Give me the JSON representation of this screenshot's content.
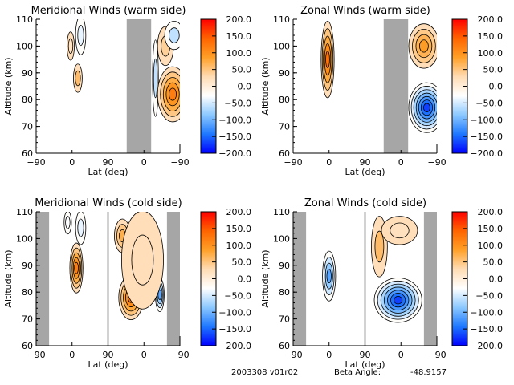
{
  "footer": {
    "date_version": "2003308 v01r02",
    "beta_label": "Beta Angle:",
    "beta_value": "-48.9157"
  },
  "colorbar": {
    "ticks": [
      "200.0",
      "150.0",
      "100.0",
      "50.0",
      "0.0",
      "-50.0",
      "-100.0",
      "-150.0",
      "-200.0"
    ],
    "range": [
      -200,
      200
    ],
    "colors": [
      "#0000ff",
      "#1e78ff",
      "#8cc8ff",
      "#ffffff",
      "#ffdcb4",
      "#ffa028",
      "#ff6400",
      "#ff0000"
    ]
  },
  "chart_data": [
    {
      "type": "heatmap",
      "title": "Meridional Winds (warm side)",
      "xlabel": "Lat (deg)",
      "ylabel": "Altitude (km)",
      "xticks": [
        "-90",
        "0",
        "90",
        "0",
        "-90"
      ],
      "yticks": [
        "60",
        "70",
        "80",
        "90",
        "100",
        "110"
      ],
      "ylim": [
        60,
        110
      ],
      "gap_band": [
        0.63,
        0.8
      ],
      "features": [
        {
          "x": 0.29,
          "y": 88,
          "rx": 0.025,
          "ry": 5,
          "v": 60
        },
        {
          "x": 0.24,
          "y": 100,
          "rx": 0.02,
          "ry": 5,
          "v": 15
        },
        {
          "x": 0.31,
          "y": 104,
          "rx": 0.03,
          "ry": 7,
          "v": -40
        },
        {
          "x": 0.83,
          "y": 88,
          "rx": 0.015,
          "ry": 14,
          "v": -60
        },
        {
          "x": 0.9,
          "y": 100,
          "rx": 0.05,
          "ry": 7,
          "v": 40
        },
        {
          "x": 0.95,
          "y": 82,
          "rx": 0.1,
          "ry": 10,
          "v": 120
        },
        {
          "x": 0.96,
          "y": 104,
          "rx": 0.06,
          "ry": 5,
          "v": -60
        }
      ]
    },
    {
      "type": "heatmap",
      "title": "Zonal Winds (warm side)",
      "xlabel": "Lat (deg)",
      "ylabel": "Altitude (km)",
      "xticks": [
        "-90",
        "0",
        "90",
        "0",
        "-90"
      ],
      "yticks": [
        "60",
        "70",
        "80",
        "90",
        "100",
        "110"
      ],
      "ylim": [
        60,
        110
      ],
      "gap_band": [
        0.63,
        0.8
      ],
      "features": [
        {
          "x": 0.24,
          "y": 95,
          "rx": 0.04,
          "ry": 14,
          "v": 130
        },
        {
          "x": 0.91,
          "y": 100,
          "rx": 0.1,
          "ry": 8,
          "v": 90
        },
        {
          "x": 0.93,
          "y": 77,
          "rx": 0.12,
          "ry": 9,
          "v": -170
        }
      ]
    },
    {
      "type": "heatmap",
      "title": "Meridional Winds (cold side)",
      "xlabel": "Lat (deg)",
      "ylabel": "Altitude (km)",
      "xticks": [
        "-90",
        "0",
        "90",
        "0",
        "-90"
      ],
      "yticks": [
        "60",
        "70",
        "80",
        "90",
        "100",
        "110"
      ],
      "ylim": [
        60,
        110
      ],
      "gap_band": [
        0.0,
        0.09
      ],
      "gap_band2": [
        0.91,
        1.0
      ],
      "separator": 0.5,
      "features": [
        {
          "x": 0.28,
          "y": 89,
          "rx": 0.04,
          "ry": 9,
          "v": 120
        },
        {
          "x": 0.22,
          "y": 106,
          "rx": 0.02,
          "ry": 4,
          "v": -30
        },
        {
          "x": 0.31,
          "y": 104,
          "rx": 0.03,
          "ry": 6,
          "v": -40
        },
        {
          "x": 0.6,
          "y": 101,
          "rx": 0.05,
          "ry": 6,
          "v": 70
        },
        {
          "x": 0.66,
          "y": 78,
          "rx": 0.08,
          "ry": 8,
          "v": 130
        },
        {
          "x": 0.86,
          "y": 79,
          "rx": 0.025,
          "ry": 6,
          "v": -110
        },
        {
          "x": 0.74,
          "y": 92,
          "rx": 0.14,
          "ry": 18,
          "v": 25
        }
      ]
    },
    {
      "type": "heatmap",
      "title": "Zonal Winds (cold side)",
      "xlabel": "Lat (deg)",
      "ylabel": "Altitude (km)",
      "xticks": [
        "-90",
        "0",
        "90",
        "0",
        "-90"
      ],
      "yticks": [
        "60",
        "70",
        "80",
        "90",
        "100",
        "110"
      ],
      "ylim": [
        60,
        110
      ],
      "gap_band": [
        0.0,
        0.09
      ],
      "gap_band2": [
        0.91,
        1.0
      ],
      "separator": 0.5,
      "features": [
        {
          "x": 0.25,
          "y": 86,
          "rx": 0.04,
          "ry": 9,
          "v": -110
        },
        {
          "x": 0.6,
          "y": 97,
          "rx": 0.05,
          "ry": 11,
          "v": 60
        },
        {
          "x": 0.74,
          "y": 103,
          "rx": 0.12,
          "ry": 5,
          "v": 20
        },
        {
          "x": 0.73,
          "y": 77,
          "rx": 0.16,
          "ry": 8,
          "v": -170
        }
      ]
    }
  ]
}
